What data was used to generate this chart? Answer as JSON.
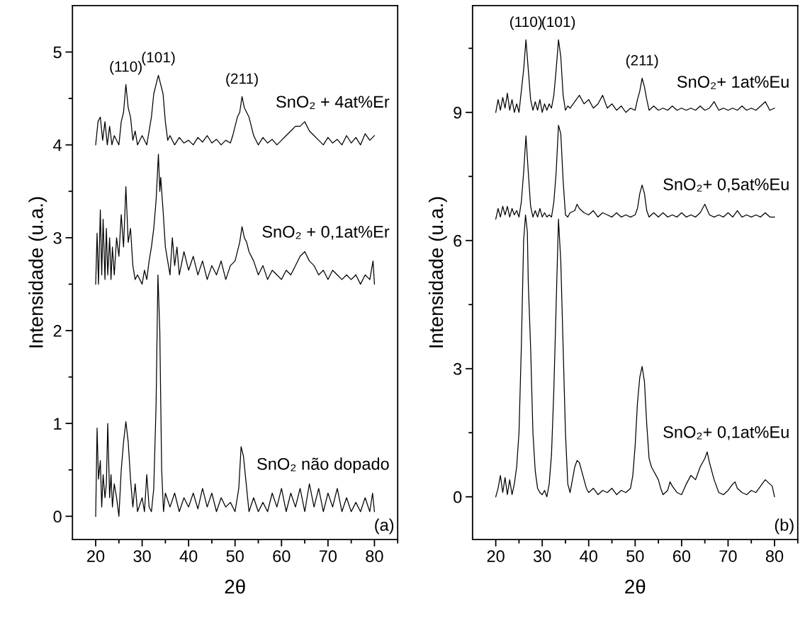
{
  "chart_data": [
    {
      "type": "line",
      "xlabel": "2θ",
      "ylabel": "Intensidade (u.a.)",
      "xlim": [
        15,
        85
      ],
      "ylim": [
        -0.25,
        5.5
      ],
      "xticks": [
        20,
        {
          "value": 25,
          "label": null
        },
        30,
        {
          "value": 35,
          "label": null
        },
        40,
        {
          "value": 45,
          "label": null
        },
        50,
        {
          "value": 55,
          "label": null
        },
        60,
        {
          "value": 65,
          "label": null
        },
        70,
        {
          "value": 75,
          "label": null
        },
        80,
        {
          "value": 85,
          "label": null
        }
      ],
      "yticks": [
        0,
        {
          "value": 0.5,
          "label": null
        },
        1,
        {
          "value": 1.5,
          "label": null
        },
        2,
        {
          "value": 2.5,
          "label": null
        },
        3,
        {
          "value": 3.5,
          "label": null
        },
        4,
        {
          "value": 4.5,
          "label": null
        },
        5
      ],
      "series": [
        {
          "name": "SnO₂ + 4at%Er",
          "color": "#000000",
          "x": [
            20,
            20.5,
            21,
            21.5,
            22,
            22.5,
            23,
            23.5,
            24,
            25,
            25.5,
            26,
            26.5,
            27,
            27.5,
            28,
            28.5,
            29,
            30,
            31,
            31.5,
            32,
            32.5,
            33,
            33.5,
            34,
            34.5,
            35,
            35.5,
            36,
            37,
            38,
            39,
            40,
            41,
            42,
            43,
            44,
            45,
            46,
            47,
            48,
            49,
            49.5,
            50,
            50.5,
            51,
            51.5,
            52,
            52.5,
            53,
            53.5,
            54,
            55,
            56,
            57,
            58,
            59,
            60,
            61,
            62,
            63,
            64,
            65,
            66,
            67,
            68,
            69,
            70,
            71,
            72,
            73,
            74,
            75,
            76,
            77,
            78,
            79,
            80
          ],
          "values": [
            4.0,
            4.25,
            4.3,
            4.05,
            4.25,
            4.0,
            4.2,
            4.0,
            4.1,
            4.0,
            4.25,
            4.35,
            4.65,
            4.4,
            4.3,
            4.05,
            4.15,
            4.0,
            4.1,
            4.0,
            4.15,
            4.3,
            4.55,
            4.65,
            4.75,
            4.65,
            4.55,
            4.25,
            4.05,
            4.1,
            4.0,
            4.08,
            4.02,
            4.05,
            4.0,
            4.08,
            4.03,
            4.1,
            4.02,
            4.06,
            4.0,
            4.05,
            4.02,
            4.1,
            4.2,
            4.3,
            4.35,
            4.52,
            4.4,
            4.35,
            4.3,
            4.2,
            4.1,
            4.0,
            4.08,
            4.02,
            4.06,
            4.0,
            4.05,
            4.1,
            4.15,
            4.2,
            4.2,
            4.25,
            4.15,
            4.1,
            4.05,
            4.0,
            4.08,
            4.02,
            4.06,
            4.0,
            4.1,
            4.02,
            4.08,
            4.0,
            4.12,
            4.05,
            4.1
          ]
        },
        {
          "name": "SnO₂ + 0,1at%Er",
          "color": "#000000",
          "x": [
            20,
            20.3,
            20.6,
            21,
            21.3,
            21.6,
            22,
            22.3,
            22.6,
            23,
            23.3,
            23.6,
            24,
            24.5,
            25,
            25.5,
            26,
            26.5,
            27,
            27.5,
            28,
            28.5,
            29,
            30,
            30.5,
            31,
            31.5,
            32,
            32.5,
            33,
            33.5,
            33.8,
            34,
            34.5,
            35,
            35.5,
            36,
            36.5,
            37,
            37.5,
            38,
            39,
            40,
            41,
            42,
            43,
            44,
            45,
            46,
            47,
            48,
            49,
            50,
            51,
            51.5,
            52,
            52.5,
            53,
            54,
            55,
            56,
            57,
            58,
            59,
            60,
            61,
            62,
            63,
            64,
            65,
            66,
            67,
            68,
            69,
            70,
            71,
            72,
            73,
            74,
            75,
            76,
            77,
            78,
            79,
            79.7,
            80
          ],
          "values": [
            2.5,
            3.05,
            2.5,
            3.3,
            2.6,
            3.2,
            2.55,
            3.1,
            2.6,
            3.0,
            2.55,
            2.9,
            2.6,
            3.0,
            2.8,
            3.25,
            2.9,
            3.55,
            2.95,
            3.1,
            2.7,
            2.55,
            2.6,
            2.5,
            2.65,
            2.55,
            2.75,
            2.9,
            3.1,
            3.4,
            3.9,
            3.5,
            3.65,
            3.3,
            2.9,
            2.75,
            2.6,
            3.0,
            2.7,
            2.9,
            2.6,
            2.85,
            2.65,
            2.8,
            2.6,
            2.75,
            2.55,
            2.7,
            2.6,
            2.75,
            2.55,
            2.7,
            2.75,
            2.95,
            3.12,
            3.0,
            2.95,
            2.85,
            2.75,
            2.6,
            2.7,
            2.55,
            2.65,
            2.6,
            2.55,
            2.65,
            2.6,
            2.7,
            2.8,
            2.85,
            2.75,
            2.7,
            2.6,
            2.65,
            2.55,
            2.65,
            2.6,
            2.55,
            2.6,
            2.55,
            2.6,
            2.5,
            2.6,
            2.55,
            2.75,
            2.5
          ]
        },
        {
          "name": "SnO₂ não dopado",
          "color": "#000000",
          "x": [
            20,
            20.3,
            20.6,
            21,
            21.3,
            21.6,
            22,
            22.3,
            22.6,
            23,
            23.3,
            23.6,
            24,
            24.5,
            25,
            25.5,
            26,
            26.5,
            27,
            27.5,
            28,
            28.5,
            29,
            30,
            30.5,
            31,
            31.5,
            32,
            32.5,
            33,
            33.4,
            33.8,
            34.2,
            34.6,
            35,
            36,
            37,
            38,
            39,
            40,
            41,
            42,
            43,
            44,
            45,
            46,
            47,
            48,
            49,
            50,
            50.8,
            51.3,
            51.8,
            52.3,
            53,
            54,
            55,
            56,
            57,
            58,
            59,
            60,
            61,
            62,
            63,
            64,
            65,
            66,
            67,
            68,
            69,
            70,
            71,
            72,
            73,
            74,
            75,
            76,
            77,
            78,
            79,
            79.6,
            80
          ],
          "values": [
            0,
            0.95,
            0.4,
            0.6,
            0.1,
            0.45,
            0.2,
            0.35,
            1.0,
            0.2,
            0.45,
            0.1,
            0.35,
            0.2,
            0.0,
            0.5,
            0.8,
            1.02,
            0.8,
            0.4,
            0.1,
            0.35,
            0.05,
            0.2,
            0.05,
            0.45,
            0.1,
            0.05,
            0.3,
            1.2,
            2.6,
            2.0,
            0.5,
            0.05,
            0.25,
            0.1,
            0.25,
            0.05,
            0.2,
            0.1,
            0.25,
            0.08,
            0.3,
            0.1,
            0.25,
            0.05,
            0.2,
            0.1,
            0.15,
            0.05,
            0.3,
            0.75,
            0.65,
            0.4,
            0.05,
            0.2,
            0.05,
            0.15,
            0.05,
            0.25,
            0.1,
            0.3,
            0.05,
            0.25,
            0.1,
            0.3,
            0.05,
            0.35,
            0.1,
            0.3,
            0.05,
            0.25,
            0.1,
            0.3,
            0.05,
            0.2,
            0.05,
            0.15,
            0.05,
            0.2,
            0.05,
            0.25,
            0.05
          ]
        }
      ],
      "annotations": [
        {
          "text": "(110)",
          "x": 26.5,
          "y": 4.65
        },
        {
          "text": "(101)",
          "x": 33.5,
          "y": 4.75
        },
        {
          "text": "(211)",
          "x": 51.5,
          "y": 4.52
        },
        "(a)"
      ]
    },
    {
      "type": "line",
      "xlabel": "2θ",
      "ylabel": "Intensidade (u.a.)",
      "xlim": [
        15,
        85
      ],
      "ylim": [
        -1,
        11.5
      ],
      "xticks": [
        20,
        {
          "value": 25,
          "label": null
        },
        30,
        {
          "value": 35,
          "label": null
        },
        40,
        {
          "value": 45,
          "label": null
        },
        50,
        {
          "value": 55,
          "label": null
        },
        60,
        {
          "value": 65,
          "label": null
        },
        70,
        {
          "value": 75,
          "label": null
        },
        80,
        {
          "value": 85,
          "label": null
        }
      ],
      "yticks": [
        0,
        {
          "value": 1.5,
          "label": null
        },
        3,
        {
          "value": 4.5,
          "label": null
        },
        6,
        {
          "value": 7.5,
          "label": null
        },
        9,
        {
          "value": 10.5,
          "label": null
        }
      ],
      "series": [
        {
          "name": "SnO₂+ 1at%Eu",
          "color": "#000000",
          "x": [
            20,
            20.5,
            21,
            21.5,
            22,
            22.5,
            23,
            23.5,
            24,
            24.5,
            25,
            25.5,
            26,
            26.5,
            27,
            27.5,
            28,
            28.5,
            29,
            29.5,
            30,
            30.5,
            31,
            31.5,
            32,
            32.5,
            33,
            33.5,
            34,
            34.5,
            35,
            35.5,
            36,
            37,
            38,
            39,
            40,
            41,
            42,
            43,
            44,
            45,
            46,
            47,
            48,
            49,
            50,
            50.5,
            51,
            51.5,
            52,
            52.5,
            53,
            54,
            55,
            56,
            57,
            58,
            59,
            60,
            61,
            62,
            63,
            64,
            65,
            66,
            67,
            68,
            69,
            70,
            71,
            72,
            73,
            74,
            75,
            76,
            77,
            78,
            79,
            80
          ],
          "values": [
            9.0,
            9.3,
            9.05,
            9.35,
            9.1,
            9.45,
            9.05,
            9.3,
            9.0,
            9.2,
            9.0,
            9.5,
            10.0,
            10.7,
            10.0,
            9.3,
            9.05,
            9.25,
            9.05,
            9.3,
            9.0,
            9.2,
            9.05,
            9.2,
            9.1,
            9.4,
            10.0,
            10.7,
            10.3,
            9.4,
            9.05,
            9.15,
            9.1,
            9.25,
            9.4,
            9.2,
            9.3,
            9.1,
            9.2,
            9.4,
            9.1,
            9.2,
            9.05,
            9.15,
            9.0,
            9.1,
            9.05,
            9.3,
            9.5,
            9.8,
            9.6,
            9.3,
            9.05,
            9.15,
            9.05,
            9.1,
            9.05,
            9.15,
            9.05,
            9.1,
            9.05,
            9.1,
            9.05,
            9.15,
            9.05,
            9.1,
            9.25,
            9.05,
            9.1,
            9.05,
            9.1,
            9.05,
            9.15,
            9.05,
            9.1,
            9.05,
            9.15,
            9.25,
            9.05,
            9.1
          ]
        },
        {
          "name": "SnO₂+ 0,5at%Eu",
          "color": "#000000",
          "x": [
            20,
            20.5,
            21,
            21.5,
            22,
            22.5,
            23,
            23.5,
            24,
            24.5,
            25,
            25.5,
            26,
            26.5,
            27,
            27.5,
            28,
            28.5,
            29,
            29.5,
            30,
            30.5,
            31,
            31.5,
            32,
            32.5,
            33,
            33.5,
            34,
            34.5,
            35,
            35.5,
            36,
            37,
            37.5,
            38,
            39,
            40,
            41,
            42,
            43,
            44,
            45,
            46,
            47,
            48,
            49,
            50,
            50.5,
            51,
            51.5,
            52,
            52.5,
            53,
            54,
            55,
            56,
            57,
            58,
            59,
            60,
            61,
            62,
            63,
            64,
            65,
            66,
            67,
            68,
            69,
            70,
            71,
            72,
            73,
            74,
            75,
            76,
            77,
            78,
            79,
            80
          ],
          "values": [
            6.5,
            6.75,
            6.55,
            6.8,
            6.6,
            6.8,
            6.55,
            6.75,
            6.6,
            6.7,
            6.55,
            6.9,
            7.6,
            8.45,
            7.6,
            6.8,
            6.55,
            6.7,
            6.55,
            6.75,
            6.55,
            6.65,
            6.55,
            6.6,
            6.55,
            6.9,
            7.6,
            8.7,
            8.5,
            7.4,
            6.6,
            6.55,
            6.65,
            6.7,
            6.85,
            6.75,
            6.65,
            6.6,
            6.7,
            6.55,
            6.65,
            6.6,
            6.55,
            6.65,
            6.55,
            6.6,
            6.55,
            6.6,
            6.75,
            7.1,
            7.3,
            7.1,
            6.7,
            6.55,
            6.65,
            6.55,
            6.65,
            6.55,
            6.6,
            6.55,
            6.65,
            6.55,
            6.6,
            6.55,
            6.65,
            6.85,
            6.6,
            6.55,
            6.6,
            6.55,
            6.65,
            6.55,
            6.7,
            6.55,
            6.6,
            6.55,
            6.6,
            6.55,
            6.65,
            6.55,
            6.55
          ]
        },
        {
          "name": "SnO₂+ 0,1at%Eu",
          "color": "#000000",
          "x": [
            20,
            20.5,
            21,
            21.5,
            22,
            22.5,
            23,
            23.5,
            24,
            24.5,
            25,
            25.5,
            26,
            26.4,
            26.8,
            27,
            27.5,
            28,
            28.5,
            29,
            29.5,
            30,
            30.5,
            31,
            31.5,
            32,
            32.5,
            33,
            33.5,
            34,
            34.5,
            35,
            35.5,
            36,
            36.5,
            37,
            37.5,
            38,
            38.5,
            39,
            39.5,
            40,
            41,
            42,
            43,
            44,
            45,
            46,
            47,
            48,
            49,
            49.5,
            50,
            50.5,
            51,
            51.5,
            52,
            52.5,
            53,
            53.5,
            54,
            55,
            55.5,
            56,
            57,
            57.5,
            58,
            59,
            60,
            61,
            62,
            63,
            64,
            65,
            65.5,
            66,
            67,
            68,
            69,
            70,
            71,
            71.5,
            72,
            73,
            74,
            75,
            76,
            77,
            78,
            79,
            79.5,
            80
          ],
          "values": [
            0,
            0.2,
            0.5,
            0.1,
            0.45,
            0.05,
            0.4,
            0.05,
            0.3,
            0.7,
            1.5,
            3.5,
            6.0,
            6.6,
            6.2,
            5.0,
            3.5,
            1.5,
            0.6,
            0.2,
            0.1,
            0.05,
            0.15,
            0.0,
            0.3,
            1.0,
            2.5,
            4.5,
            6.5,
            5.5,
            3.5,
            1.5,
            0.3,
            0.1,
            0.4,
            0.7,
            0.85,
            0.8,
            0.6,
            0.4,
            0.2,
            0.1,
            0.2,
            0.05,
            0.15,
            0.1,
            0.2,
            0.05,
            0.15,
            0.1,
            0.2,
            0.5,
            1.2,
            2.2,
            2.8,
            3.05,
            2.7,
            1.7,
            0.9,
            0.7,
            0.6,
            0.4,
            0.2,
            0.05,
            0.15,
            0.35,
            0.25,
            0.1,
            0.05,
            0.3,
            0.5,
            0.4,
            0.7,
            0.9,
            1.05,
            0.8,
            0.4,
            0.1,
            0.05,
            0.15,
            0.3,
            0.35,
            0.2,
            0.1,
            0.05,
            0.15,
            0.1,
            0.25,
            0.4,
            0.3,
            0.25,
            0.0
          ]
        }
      ],
      "annotations": [
        {
          "text": "(110)",
          "x": 26.5,
          "y": 10.7
        },
        {
          "text": "(101)",
          "x": 33.5,
          "y": 10.7
        },
        {
          "text": "(211)",
          "x": 51.5,
          "y": 9.8
        },
        "(b)"
      ]
    }
  ]
}
